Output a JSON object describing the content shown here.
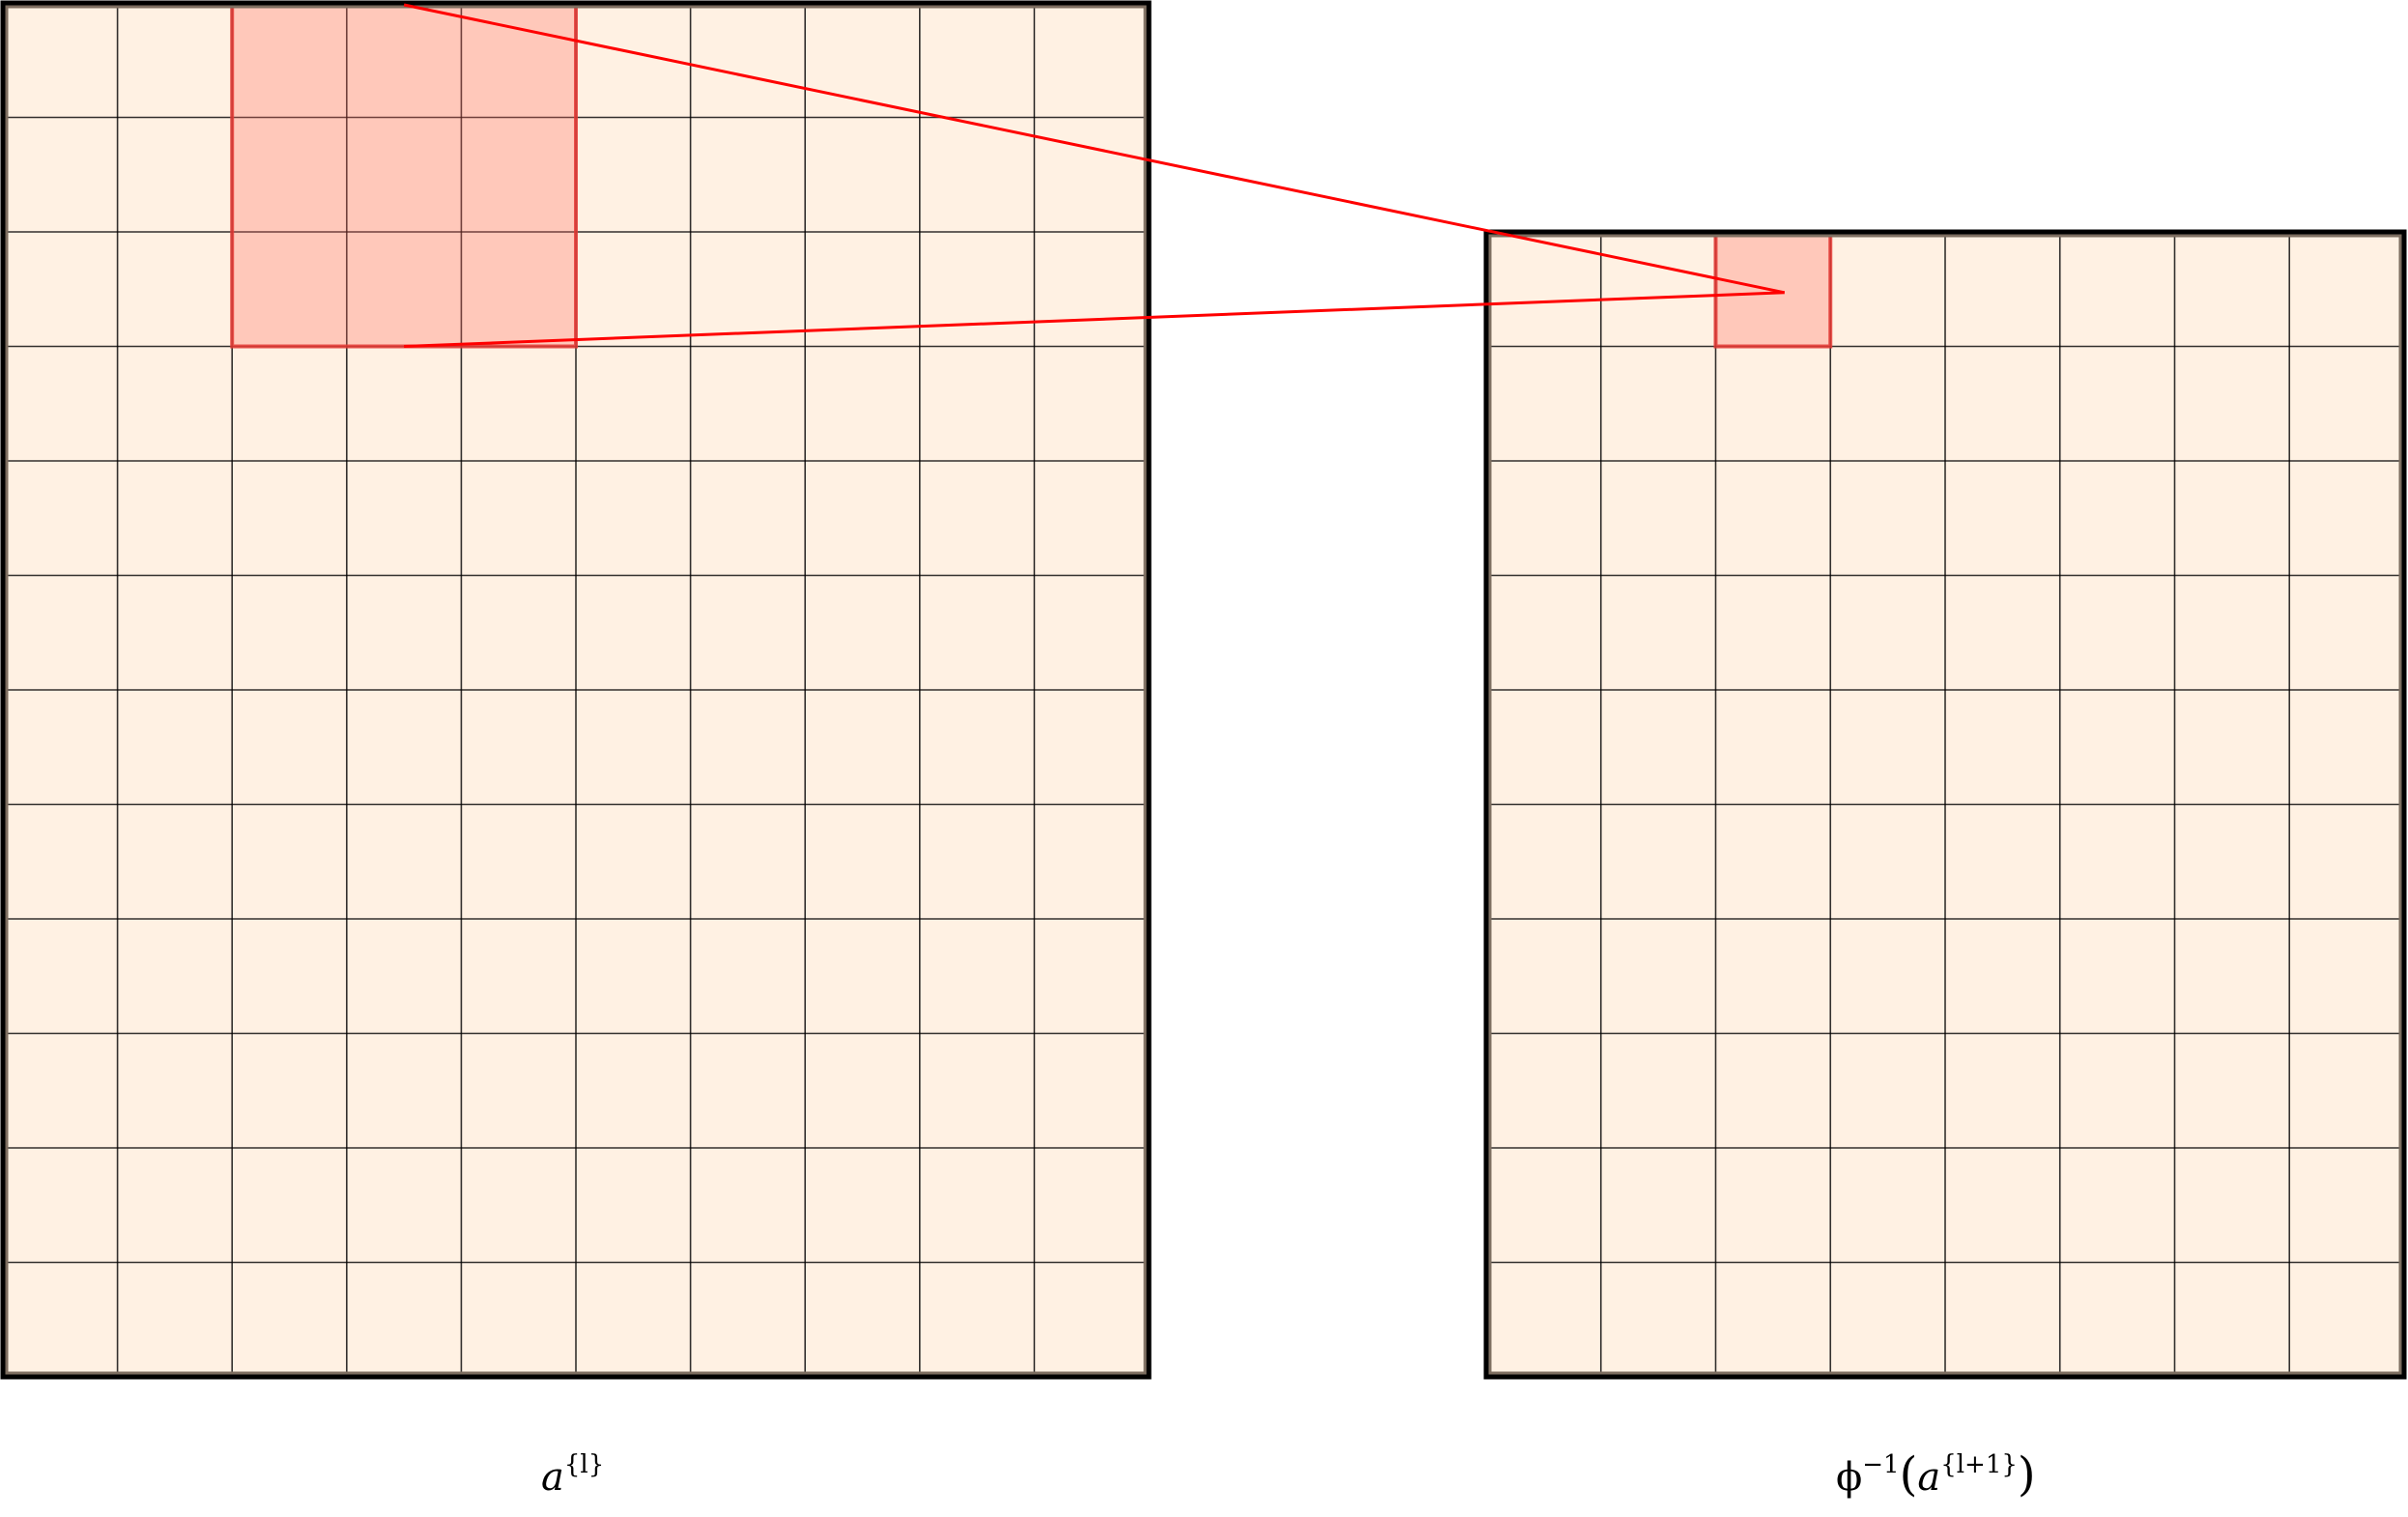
{
  "colors": {
    "cell_fill": "#fff1e3",
    "grid_line": "#000000",
    "highlight_fill": "#ffd1cc",
    "highlight_stroke": "#e53935",
    "connector": "#ff0000"
  },
  "left_grid": {
    "label": "a^{l}",
    "label_base": "a",
    "label_sup": "{l}",
    "columns": 10,
    "rows": 12,
    "highlight": {
      "col_start": 2,
      "col_end": 4,
      "row_start": 0,
      "row_end": 2
    }
  },
  "right_grid": {
    "label": "ϕ^{-1}(a^{l+1})",
    "label_prefix": "ϕ",
    "label_prefix_sup": "−1",
    "label_open": "(",
    "label_base": "a",
    "label_sup": "{l+1}",
    "label_close": ")",
    "columns": 8,
    "rows": 10,
    "highlight": {
      "col_start": 2,
      "col_end": 2,
      "row_start": 0,
      "row_end": 0
    }
  }
}
